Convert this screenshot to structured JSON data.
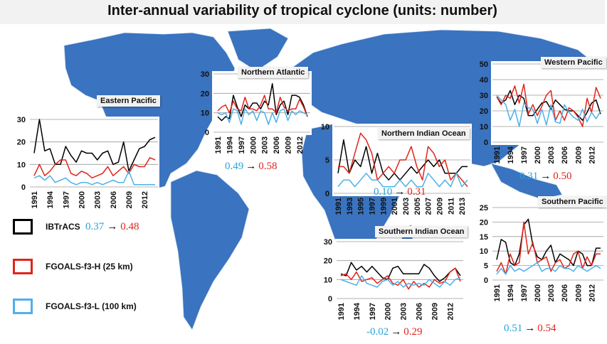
{
  "page": {
    "title": "Inter-annual variability of tropical cyclone (units: number)"
  },
  "colors": {
    "map_land": "#3a73bf",
    "map_border": "#d6e3f3",
    "ibtracs": "#000000",
    "fgoals_h": "#e0241b",
    "fgoals_l": "#4fb0e8",
    "corr_l": "#29a3d6",
    "corr_h": "#e0241b"
  },
  "legend": {
    "items": [
      {
        "label": "IBTrACS",
        "color": "#000000"
      },
      {
        "label": "FGOALS-f3-H (25 km)",
        "color": "#e0241b"
      },
      {
        "label": "FGOALS-f3-L (100 km)",
        "color": "#4fb0e8"
      }
    ],
    "corr_l": "0.37",
    "corr_h": "0.48",
    "arrow": "→"
  },
  "chart_data": [
    {
      "type": "line",
      "region": "Eastern Pacific",
      "ylim": [
        0,
        30
      ],
      "yticks": [
        "0",
        "10",
        "20",
        "30"
      ],
      "xticks": [
        "1991",
        "1994",
        "1997",
        "2000",
        "2003",
        "2006",
        "2009",
        "2012"
      ],
      "x": [
        1991,
        1992,
        1993,
        1994,
        1995,
        1996,
        1997,
        1998,
        1999,
        2000,
        2001,
        2002,
        2003,
        2004,
        2005,
        2006,
        2007,
        2008,
        2009,
        2010,
        2011,
        2012,
        2013,
        2014
      ],
      "series": [
        {
          "name": "IBTrACS",
          "color": "#000000",
          "values": [
            15,
            30,
            16,
            17,
            10,
            10,
            18,
            14,
            11,
            16,
            15,
            15,
            12,
            15,
            16,
            10,
            11,
            20,
            7,
            12,
            17,
            18,
            21,
            22
          ]
        },
        {
          "name": "FGOALS-f3-H (25 km)",
          "color": "#e0241b",
          "values": [
            5,
            10,
            5,
            7,
            10,
            12,
            12,
            6,
            5,
            7,
            6,
            4,
            5,
            6,
            9,
            5,
            7,
            9,
            6,
            10,
            9,
            9,
            13,
            12
          ]
        },
        {
          "name": "FGOALS-f3-L (100 km)",
          "color": "#4fb0e8",
          "values": [
            4,
            5,
            3,
            5,
            2,
            3,
            4,
            2,
            1,
            2,
            2,
            1,
            2,
            1,
            2,
            3,
            2,
            2,
            7,
            1,
            1,
            1,
            1,
            1
          ]
        }
      ],
      "corr_l": "",
      "corr_h": ""
    },
    {
      "type": "line",
      "region": "Northern Atlantic",
      "ylim": [
        0,
        30
      ],
      "yticks": [
        "0",
        "10",
        "20",
        "30"
      ],
      "xticks": [
        "1991",
        "1994",
        "1997",
        "2000",
        "2003",
        "2006",
        "2009",
        "2012"
      ],
      "x": [
        1991,
        1992,
        1993,
        1994,
        1995,
        1996,
        1997,
        1998,
        1999,
        2000,
        2001,
        2002,
        2003,
        2004,
        2005,
        2006,
        2007,
        2008,
        2009,
        2010,
        2011,
        2012,
        2013,
        2014
      ],
      "series": [
        {
          "name": "IBTrACS",
          "color": "#000000",
          "values": [
            8,
            6,
            8,
            7,
            19,
            13,
            8,
            14,
            12,
            15,
            15,
            12,
            16,
            14,
            25,
            9,
            14,
            16,
            9,
            19,
            19,
            18,
            14,
            8
          ]
        },
        {
          "name": "FGOALS-f3-H (25 km)",
          "color": "#e0241b",
          "values": [
            11,
            13,
            14,
            10,
            16,
            12,
            11,
            18,
            12,
            12,
            11,
            14,
            19,
            12,
            12,
            10,
            18,
            13,
            11,
            12,
            12,
            17,
            13,
            8
          ]
        },
        {
          "name": "FGOALS-f3-L (100 km)",
          "color": "#4fb0e8",
          "values": [
            10,
            9,
            10,
            5,
            12,
            11,
            4,
            12,
            9,
            11,
            6,
            11,
            10,
            4,
            10,
            5,
            11,
            12,
            6,
            11,
            9,
            11,
            10,
            9
          ]
        }
      ],
      "corr_l": "0.49",
      "corr_h": "0.58"
    },
    {
      "type": "line",
      "region": "Western Pacific",
      "ylim": [
        0,
        50
      ],
      "yticks": [
        "0",
        "10",
        "20",
        "30",
        "40",
        "50"
      ],
      "xticks": [
        "1991",
        "1994",
        "1997",
        "2000",
        "2003",
        "2006",
        "2009",
        "2012"
      ],
      "x": [
        1991,
        1992,
        1993,
        1994,
        1995,
        1996,
        1997,
        1998,
        1999,
        2000,
        2001,
        2002,
        2003,
        2004,
        2005,
        2006,
        2007,
        2008,
        2009,
        2010,
        2011,
        2012,
        2013,
        2014
      ],
      "series": [
        {
          "name": "IBTrACS",
          "color": "#000000",
          "values": [
            29,
            25,
            27,
            33,
            24,
            30,
            28,
            17,
            17,
            21,
            25,
            26,
            21,
            27,
            24,
            21,
            20,
            20,
            17,
            14,
            19,
            25,
            27,
            18
          ]
        },
        {
          "name": "FGOALS-f3-H (25 km)",
          "color": "#e0241b",
          "values": [
            29,
            24,
            30,
            28,
            36,
            25,
            37,
            18,
            24,
            17,
            23,
            30,
            33,
            14,
            20,
            14,
            22,
            20,
            16,
            10,
            28,
            19,
            35,
            28
          ]
        },
        {
          "name": "FGOALS-f3-L (100 km)",
          "color": "#4fb0e8",
          "values": [
            30,
            27,
            24,
            14,
            21,
            10,
            25,
            22,
            21,
            12,
            21,
            11,
            24,
            13,
            12,
            24,
            19,
            16,
            14,
            21,
            13,
            19,
            15,
            20
          ]
        }
      ],
      "corr_l": "0.31",
      "corr_h": "0.50"
    },
    {
      "type": "line",
      "region": "Northern Indian Ocean",
      "ylim": [
        0,
        10
      ],
      "yticks": [
        "0",
        "5",
        "10"
      ],
      "xticks": [
        "1991",
        "1993",
        "1995",
        "1997",
        "1999",
        "2001",
        "2003",
        "2005",
        "2007",
        "2009",
        "2011",
        "2013"
      ],
      "x": [
        1991,
        1992,
        1993,
        1994,
        1995,
        1996,
        1997,
        1998,
        1999,
        2000,
        2001,
        2002,
        2003,
        2004,
        2005,
        2006,
        2007,
        2008,
        2009,
        2010,
        2011,
        2012,
        2013,
        2014
      ],
      "series": [
        {
          "name": "IBTrACS",
          "color": "#000000",
          "values": [
            3,
            8,
            3,
            5,
            4,
            7,
            3,
            6,
            3,
            2,
            3,
            2,
            3,
            4,
            3,
            4,
            5,
            4,
            5,
            3,
            3,
            3,
            4,
            4
          ]
        },
        {
          "name": "FGOALS-f3-H (25 km)",
          "color": "#e0241b",
          "values": [
            4,
            4,
            3,
            6,
            9,
            8,
            6,
            2,
            3,
            4,
            3,
            5,
            5,
            7,
            4,
            2,
            7,
            6,
            4,
            5,
            2,
            3,
            2,
            1
          ]
        },
        {
          "name": "FGOALS-f3-L (100 km)",
          "color": "#4fb0e8",
          "values": [
            1,
            2,
            2,
            1,
            2,
            3,
            2,
            2,
            1,
            1,
            1,
            2,
            1,
            2,
            1,
            1,
            3,
            2,
            1,
            2,
            1,
            3,
            1,
            2
          ]
        }
      ],
      "corr_l": "0.10",
      "corr_h": "0.31"
    },
    {
      "type": "line",
      "region": "Southern Pacific",
      "ylim": [
        0,
        25
      ],
      "yticks": [
        "0",
        "5",
        "10",
        "15",
        "20",
        "25"
      ],
      "xticks": [
        "1991",
        "1994",
        "1997",
        "2000",
        "2003",
        "2006",
        "2009",
        "2012"
      ],
      "x": [
        1991,
        1992,
        1993,
        1994,
        1995,
        1996,
        1997,
        1998,
        1999,
        2000,
        2001,
        2002,
        2003,
        2004,
        2005,
        2006,
        2007,
        2008,
        2009,
        2010,
        2011,
        2012,
        2013,
        2014
      ],
      "series": [
        {
          "name": "IBTrACS",
          "color": "#000000",
          "values": [
            7,
            14,
            13,
            6,
            5,
            9,
            19,
            21,
            12,
            8,
            7,
            10,
            12,
            6,
            9,
            8,
            7,
            5,
            10,
            9,
            5,
            5,
            11,
            11
          ]
        },
        {
          "name": "FGOALS-f3-H (25 km)",
          "color": "#e0241b",
          "values": [
            3,
            6,
            2,
            9,
            5,
            6,
            20,
            9,
            13,
            6,
            7,
            8,
            3,
            6,
            7,
            4,
            5,
            9,
            10,
            4,
            8,
            5,
            9,
            9
          ]
        },
        {
          "name": "FGOALS-f3-L (100 km)",
          "color": "#4fb0e8",
          "values": [
            2,
            4,
            2,
            5,
            3,
            4,
            3,
            4,
            5,
            6,
            3,
            4,
            4,
            3,
            5,
            4,
            4,
            3,
            5,
            4,
            3,
            4,
            5,
            4
          ]
        }
      ],
      "corr_l": "0.51",
      "corr_h": "0.54"
    },
    {
      "type": "line",
      "region": "Southern Indian Ocean",
      "ylim": [
        0,
        30
      ],
      "yticks": [
        "0",
        "10",
        "20",
        "30"
      ],
      "xticks": [
        "1991",
        "1994",
        "1997",
        "2000",
        "2003",
        "2006",
        "2009",
        "2012"
      ],
      "x": [
        1991,
        1992,
        1993,
        1994,
        1995,
        1996,
        1997,
        1998,
        1999,
        2000,
        2001,
        2002,
        2003,
        2004,
        2005,
        2006,
        2007,
        2008,
        2009,
        2010,
        2011,
        2012,
        2013,
        2014
      ],
      "series": [
        {
          "name": "IBTrACS",
          "color": "#000000",
          "values": [
            13,
            12,
            19,
            15,
            17,
            14,
            17,
            14,
            11,
            10,
            16,
            17,
            13,
            13,
            13,
            13,
            18,
            16,
            12,
            9,
            11,
            14,
            16,
            12
          ]
        },
        {
          "name": "FGOALS-f3-H (25 km)",
          "color": "#e0241b",
          "values": [
            12,
            13,
            10,
            14,
            9,
            10,
            11,
            8,
            10,
            12,
            8,
            7,
            10,
            5,
            9,
            6,
            8,
            6,
            10,
            8,
            9,
            14,
            16,
            9
          ]
        },
        {
          "name": "FGOALS-f3-L (100 km)",
          "color": "#4fb0e8",
          "values": [
            10,
            9,
            8,
            7,
            12,
            8,
            7,
            6,
            9,
            10,
            7,
            9,
            6,
            8,
            7,
            8,
            7,
            10,
            8,
            6,
            9,
            7,
            10,
            11
          ]
        }
      ],
      "corr_l": "-0.02",
      "corr_h": "0.29"
    }
  ]
}
